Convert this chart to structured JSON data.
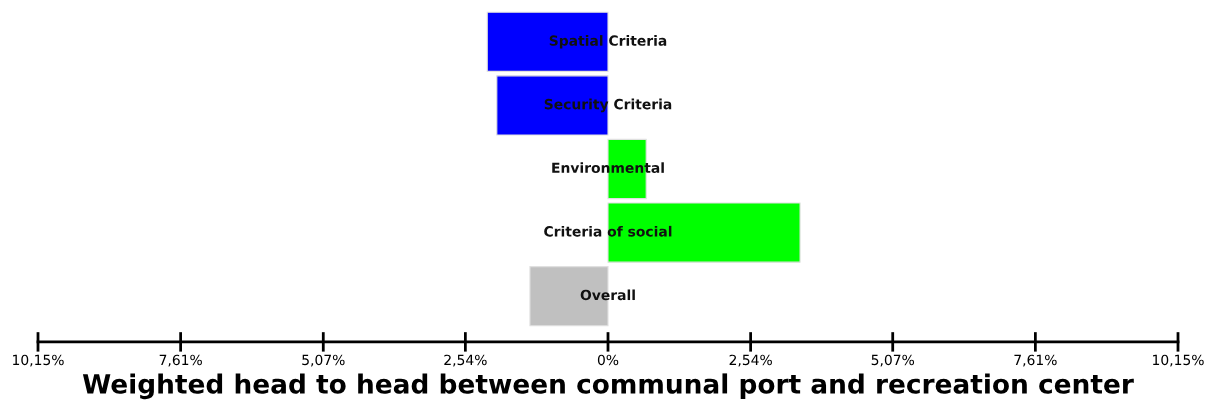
{
  "chart_data": {
    "type": "bar",
    "orientation": "horizontal",
    "xlabel": "Weighted head to head between communal port and recreation center",
    "categories": [
      "Spatial Criteria",
      "Security Criteria",
      "Environmental",
      "Criteria of social",
      "Overall"
    ],
    "values": [
      -2.15,
      -1.98,
      0.68,
      3.42,
      -1.39
    ],
    "colors": [
      "#0000ff",
      "#0000ff",
      "#00ff00",
      "#00ff00",
      "#c0c0c0"
    ],
    "xlim": [
      -10.15,
      10.15
    ],
    "xticks": [
      {
        "value": -10.15,
        "label": "10,15%"
      },
      {
        "value": -7.61,
        "label": "7,61%"
      },
      {
        "value": -5.07,
        "label": "5,07%"
      },
      {
        "value": -2.54,
        "label": "2,54%"
      },
      {
        "value": 0,
        "label": "0%"
      },
      {
        "value": 2.54,
        "label": "2,54%"
      },
      {
        "value": 5.07,
        "label": "5,07%"
      },
      {
        "value": 7.61,
        "label": "7,61%"
      },
      {
        "value": 10.15,
        "label": "10,15%"
      }
    ],
    "grid": false,
    "legend": false
  }
}
